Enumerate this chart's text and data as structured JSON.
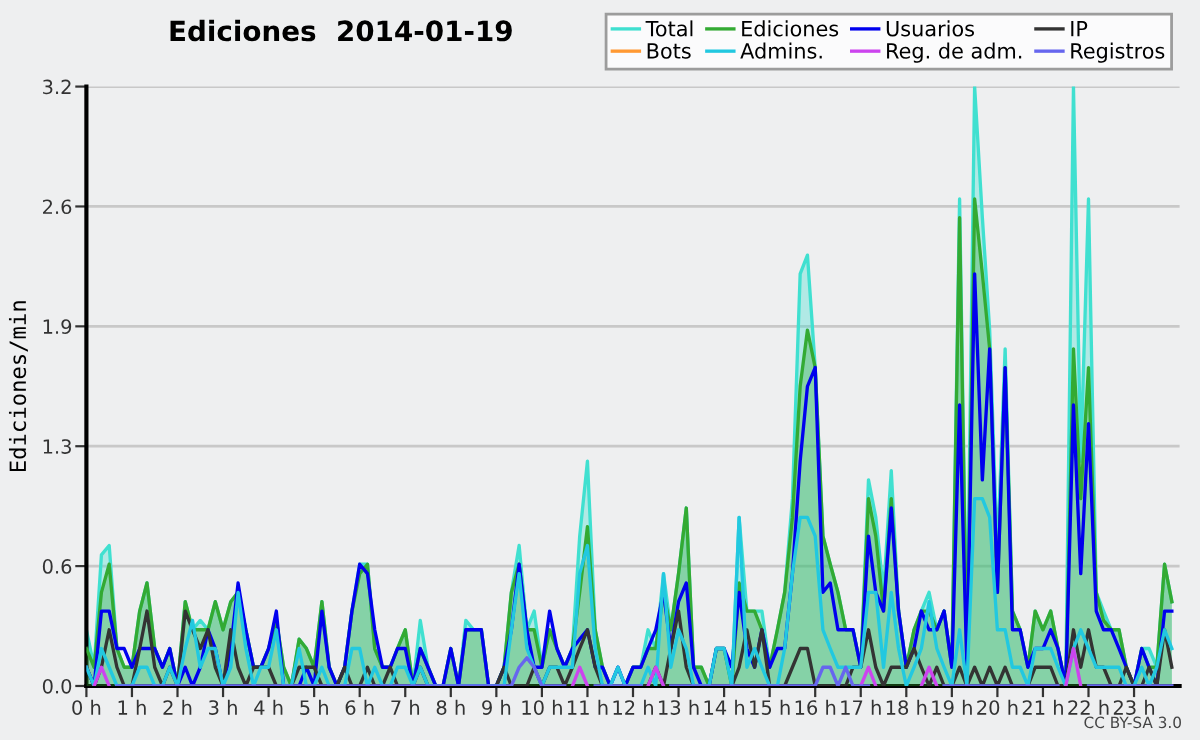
{
  "chart_data": {
    "type": "line",
    "title": "Ediciones  2014-01-19",
    "ylabel": "Ediciones/min",
    "annotations": [
      "CC BY-SA 3.0"
    ],
    "x": [
      0,
      0.17,
      0.33,
      0.5,
      0.67,
      0.83,
      1,
      1.17,
      1.33,
      1.5,
      1.67,
      1.83,
      2,
      2.17,
      2.33,
      2.5,
      2.67,
      2.83,
      3,
      3.17,
      3.33,
      3.5,
      3.67,
      3.83,
      4,
      4.17,
      4.33,
      4.5,
      4.67,
      4.83,
      5,
      5.17,
      5.33,
      5.5,
      5.67,
      5.83,
      6,
      6.17,
      6.33,
      6.5,
      6.67,
      6.83,
      7,
      7.17,
      7.33,
      7.5,
      7.67,
      7.83,
      8,
      8.17,
      8.33,
      8.5,
      8.67,
      8.83,
      9,
      9.17,
      9.33,
      9.5,
      9.67,
      9.83,
      10,
      10.17,
      10.33,
      10.5,
      10.67,
      10.83,
      11,
      11.17,
      11.33,
      11.5,
      11.67,
      11.83,
      12,
      12.17,
      12.33,
      12.5,
      12.67,
      12.83,
      13,
      13.17,
      13.33,
      13.5,
      13.67,
      13.83,
      14,
      14.17,
      14.33,
      14.5,
      14.67,
      14.83,
      15,
      15.17,
      15.33,
      15.5,
      15.67,
      15.83,
      16,
      16.17,
      16.33,
      16.5,
      16.67,
      16.83,
      17,
      17.17,
      17.33,
      17.5,
      17.67,
      17.83,
      18,
      18.17,
      18.33,
      18.5,
      18.67,
      18.83,
      19,
      19.17,
      19.33,
      19.5,
      19.67,
      19.83,
      20,
      20.17,
      20.33,
      20.5,
      20.67,
      20.83,
      21,
      21.17,
      21.33,
      21.5,
      21.67,
      21.83,
      22,
      22.17,
      22.33,
      22.5,
      22.67,
      22.83,
      23,
      23.17,
      23.33,
      23.5,
      23.67,
      23.83
    ],
    "series": [
      {
        "name": "Total",
        "type": "area",
        "color": "#40e0d0",
        "values": [
          0.3,
          0.1,
          0.7,
          0.75,
          0.2,
          0.1,
          0.1,
          0.4,
          0.55,
          0.2,
          0.1,
          0.2,
          0,
          0.45,
          0.3,
          0.35,
          0.3,
          0.45,
          0.3,
          0.45,
          0.5,
          0.3,
          0.1,
          0.1,
          0.2,
          0.35,
          0.1,
          0,
          0.25,
          0.2,
          0.1,
          0.45,
          0.1,
          0,
          0.1,
          0.4,
          0.65,
          0.65,
          0.2,
          0.1,
          0.1,
          0.2,
          0.3,
          0,
          0.35,
          0.1,
          0,
          0,
          0.2,
          0,
          0.35,
          0.3,
          0.3,
          0,
          0,
          0.1,
          0.5,
          0.75,
          0.3,
          0.4,
          0.1,
          0.3,
          0.2,
          0.1,
          0.2,
          0.8,
          1.2,
          0.3,
          0.1,
          0,
          0.1,
          0,
          0.1,
          0.1,
          0.3,
          0.2,
          0.6,
          0.3,
          0.6,
          0.95,
          0.1,
          0.1,
          0,
          0.2,
          0.2,
          0,
          0.9,
          0.4,
          0.4,
          0.4,
          0.1,
          0.3,
          0.5,
          1.0,
          2.2,
          2.3,
          1.7,
          0.8,
          0.65,
          0.5,
          0.3,
          0.3,
          0.1,
          1.1,
          0.9,
          0.5,
          1.15,
          0.4,
          0.1,
          0.3,
          0.4,
          0.5,
          0.3,
          0.4,
          0.1,
          2.6,
          0.2,
          3.2,
          2.5,
          1.9,
          0.7,
          1.8,
          0.4,
          0.3,
          0.1,
          0.4,
          0.3,
          0.4,
          0.2,
          0,
          3.2,
          1.2,
          2.6,
          0.5,
          0.4,
          0.3,
          0.3,
          0.1,
          0,
          0.2,
          0.2,
          0.1,
          0.65,
          0.45
        ]
      },
      {
        "name": "Ediciones",
        "type": "area",
        "color": "#33aa33",
        "values": [
          0.2,
          0.1,
          0.5,
          0.65,
          0.2,
          0.1,
          0.1,
          0.4,
          0.55,
          0.2,
          0.1,
          0.2,
          0,
          0.45,
          0.3,
          0.3,
          0.3,
          0.45,
          0.3,
          0.45,
          0.5,
          0.3,
          0.1,
          0.1,
          0.2,
          0.35,
          0.1,
          0,
          0.25,
          0.2,
          0.1,
          0.45,
          0.1,
          0,
          0.1,
          0.4,
          0.6,
          0.65,
          0.2,
          0.1,
          0.1,
          0.2,
          0.3,
          0,
          0.2,
          0.1,
          0,
          0,
          0.2,
          0,
          0.3,
          0.3,
          0.3,
          0,
          0,
          0.1,
          0.5,
          0.65,
          0.3,
          0.3,
          0.1,
          0.3,
          0.2,
          0.1,
          0.2,
          0.5,
          0.85,
          0.3,
          0.1,
          0,
          0,
          0,
          0.1,
          0.1,
          0.2,
          0.2,
          0.5,
          0.3,
          0.6,
          0.95,
          0.1,
          0.1,
          0,
          0.2,
          0.2,
          0,
          0.55,
          0.4,
          0.4,
          0.3,
          0.1,
          0.3,
          0.5,
          0.9,
          1.6,
          1.9,
          1.7,
          0.8,
          0.65,
          0.5,
          0.3,
          0.3,
          0.1,
          1.0,
          0.8,
          0.4,
          1.0,
          0.4,
          0.1,
          0.3,
          0.4,
          0.4,
          0.3,
          0.4,
          0.1,
          2.5,
          0.1,
          2.6,
          2.2,
          1.8,
          0.5,
          1.7,
          0.4,
          0.3,
          0.1,
          0.4,
          0.3,
          0.4,
          0.2,
          0,
          1.8,
          1.0,
          1.7,
          0.5,
          0.35,
          0.3,
          0.3,
          0.1,
          0,
          0.2,
          0.1,
          0.1,
          0.65,
          0.45
        ]
      },
      {
        "name": "Usuarios",
        "color": "#0000ee",
        "values": [
          0.1,
          0,
          0.4,
          0.4,
          0.2,
          0.2,
          0.1,
          0.2,
          0.2,
          0.2,
          0.1,
          0.2,
          0,
          0.1,
          0,
          0.1,
          0.3,
          0.2,
          0,
          0.2,
          0.55,
          0.3,
          0.1,
          0.1,
          0.2,
          0.4,
          0,
          0,
          0,
          0.1,
          0,
          0.4,
          0.1,
          0,
          0.1,
          0.4,
          0.65,
          0.6,
          0.3,
          0.1,
          0.1,
          0.2,
          0.2,
          0,
          0.2,
          0.1,
          0,
          0,
          0.2,
          0,
          0.3,
          0.3,
          0.3,
          0,
          0,
          0.1,
          0.3,
          0.65,
          0.3,
          0.1,
          0.1,
          0.4,
          0.2,
          0.1,
          0.2,
          0.25,
          0.3,
          0.1,
          0.1,
          0,
          0.1,
          0,
          0.1,
          0.1,
          0.2,
          0.3,
          0.5,
          0.2,
          0.45,
          0.55,
          0.1,
          0,
          0,
          0.2,
          0.2,
          0.1,
          0.5,
          0.2,
          0.1,
          0.3,
          0.1,
          0.2,
          0.2,
          0.6,
          1.2,
          1.6,
          1.7,
          0.5,
          0.55,
          0.3,
          0.3,
          0.3,
          0.1,
          0.8,
          0.5,
          0.4,
          0.95,
          0.4,
          0.1,
          0.2,
          0.4,
          0.3,
          0.3,
          0.4,
          0.1,
          1.5,
          0.1,
          2.2,
          1.1,
          1.8,
          0.5,
          1.7,
          0.3,
          0.3,
          0.1,
          0.2,
          0.2,
          0.3,
          0.2,
          0,
          1.5,
          0.6,
          1.4,
          0.4,
          0.3,
          0.3,
          0.2,
          0.1,
          0,
          0.2,
          0.1,
          0,
          0.4,
          0.4
        ]
      },
      {
        "name": "IP",
        "color": "#333333",
        "values": [
          0.1,
          0,
          0.1,
          0.3,
          0.1,
          0,
          0,
          0.2,
          0.4,
          0.1,
          0,
          0.1,
          0,
          0.4,
          0.3,
          0.2,
          0.3,
          0.1,
          0,
          0.3,
          0.1,
          0,
          0.1,
          0.1,
          0.1,
          0,
          0,
          0,
          0.1,
          0.1,
          0.1,
          0,
          0,
          0,
          0.1,
          0,
          0,
          0.1,
          0,
          0,
          0.1,
          0,
          0,
          0,
          0.1,
          0,
          0,
          0,
          0,
          0,
          0,
          0,
          0,
          0,
          0,
          0.1,
          0,
          0,
          0,
          0.1,
          0,
          0.1,
          0.1,
          0,
          0.1,
          0.2,
          0.3,
          0.1,
          0,
          0,
          0,
          0,
          0,
          0,
          0,
          0.1,
          0,
          0.2,
          0.4,
          0.1,
          0,
          0,
          0,
          0,
          0,
          0,
          0.1,
          0.3,
          0.1,
          0.3,
          0,
          0,
          0,
          0.1,
          0.2,
          0.2,
          0,
          0,
          0,
          0,
          0,
          0.1,
          0.1,
          0.3,
          0.1,
          0,
          0.1,
          0.1,
          0.1,
          0.2,
          0.1,
          0,
          0.1,
          0,
          0,
          0.1,
          0,
          0.1,
          0,
          0.1,
          0,
          0.1,
          0,
          0,
          0,
          0.1,
          0.1,
          0.1,
          0,
          0,
          0.3,
          0.1,
          0.3,
          0.1,
          0.1,
          0,
          0,
          0.1,
          0,
          0,
          0.1,
          0,
          0.3,
          0.1
        ]
      },
      {
        "name": "Bots",
        "color": "#ff9933",
        "values": [
          null,
          null,
          null,
          null,
          null,
          null,
          null,
          null,
          null,
          null,
          null,
          null,
          null,
          null,
          null,
          null,
          null,
          null,
          null,
          null,
          null,
          null,
          null,
          null,
          null,
          null,
          null,
          null,
          null,
          null,
          null,
          null,
          null,
          null,
          null,
          null,
          null,
          null,
          null,
          null,
          null,
          null,
          null,
          null,
          null,
          null,
          null,
          null,
          null,
          null,
          null,
          null,
          null,
          null,
          null,
          null,
          null,
          null,
          null,
          null,
          null,
          null,
          null,
          null,
          null,
          null,
          null,
          null,
          null,
          null,
          null,
          null,
          null,
          null,
          null,
          null,
          null,
          null,
          null,
          null,
          null,
          null,
          null,
          null,
          null,
          null,
          null,
          null,
          null,
          null,
          null,
          null,
          null,
          null,
          null,
          null,
          null,
          null,
          null,
          null,
          null,
          null,
          null,
          null,
          null,
          null,
          null,
          null,
          null,
          null,
          null,
          null,
          null,
          null,
          null,
          null,
          null,
          null,
          null,
          null,
          null,
          null,
          null,
          null,
          null,
          null,
          null,
          null,
          null,
          null,
          null,
          null,
          null,
          null,
          null,
          null,
          null,
          null,
          null,
          null,
          null,
          null,
          null,
          null
        ]
      },
      {
        "name": "Admins.",
        "color": "#22c8e0",
        "values": [
          0.1,
          0,
          0.2,
          0.1,
          0,
          0,
          0,
          0.1,
          0.1,
          0,
          0,
          0.1,
          0,
          0.2,
          0.35,
          0.1,
          0.2,
          0.2,
          0,
          0.1,
          0.5,
          0.2,
          0,
          0.1,
          0.1,
          0.3,
          0,
          0,
          0.2,
          0,
          0,
          0.1,
          0,
          0,
          0,
          0.2,
          0.2,
          0,
          0.1,
          0,
          0,
          0.1,
          0.1,
          0,
          0.1,
          0,
          0,
          0,
          0,
          0,
          0,
          0,
          0,
          0,
          0,
          0,
          0.3,
          0.6,
          0.2,
          0.1,
          0,
          0.1,
          0.1,
          0.1,
          0.1,
          0.6,
          0.75,
          0.2,
          0,
          0,
          0.1,
          0,
          0,
          0,
          0.1,
          0,
          0.6,
          0.1,
          0.3,
          0.2,
          0,
          0,
          0,
          0.2,
          0.2,
          0,
          0.9,
          0.1,
          0.2,
          0.1,
          0,
          0,
          0.2,
          0.6,
          0.9,
          0.9,
          0.8,
          0.3,
          0.2,
          0.1,
          0.1,
          0.1,
          0.1,
          0.5,
          0.5,
          0.1,
          0.5,
          0.2,
          0,
          0.1,
          0.2,
          0.45,
          0.2,
          0.1,
          0,
          0.3,
          0,
          1.0,
          1.0,
          0.9,
          0.3,
          0.3,
          0.1,
          0.1,
          0,
          0.2,
          0.2,
          0.2,
          0.1,
          0,
          0.2,
          0.3,
          0.2,
          0.1,
          0.1,
          0.1,
          0.1,
          0,
          0,
          0.1,
          0,
          0.1,
          0.3,
          0.2
        ]
      },
      {
        "name": "Reg. de adm.",
        "color": "#cc44ee",
        "values": [
          null,
          0,
          0.1,
          0,
          null,
          null,
          null,
          null,
          null,
          null,
          null,
          null,
          null,
          null,
          null,
          null,
          null,
          null,
          null,
          null,
          null,
          null,
          null,
          null,
          null,
          null,
          null,
          null,
          null,
          null,
          null,
          null,
          null,
          null,
          null,
          null,
          null,
          null,
          null,
          null,
          null,
          null,
          null,
          null,
          null,
          null,
          null,
          null,
          null,
          null,
          null,
          null,
          null,
          null,
          null,
          null,
          null,
          null,
          null,
          null,
          null,
          null,
          null,
          null,
          0,
          0.1,
          0,
          null,
          null,
          null,
          null,
          null,
          null,
          null,
          0,
          0.1,
          0,
          null,
          null,
          null,
          null,
          null,
          null,
          null,
          null,
          null,
          null,
          null,
          null,
          null,
          null,
          null,
          null,
          null,
          null,
          null,
          null,
          null,
          null,
          null,
          null,
          null,
          0,
          0.1,
          0,
          null,
          null,
          null,
          null,
          null,
          0,
          0.1,
          0,
          null,
          null,
          null,
          null,
          null,
          null,
          null,
          null,
          null,
          null,
          null,
          null,
          null,
          null,
          null,
          null,
          0,
          0.2,
          0,
          null,
          null,
          null,
          null,
          null,
          null,
          null,
          null,
          null,
          null,
          null,
          null
        ]
      },
      {
        "name": "Registros",
        "color": "#6666ee",
        "values": [
          null,
          null,
          null,
          null,
          0,
          0,
          0,
          0,
          0,
          0,
          0,
          0,
          0,
          0,
          0,
          0,
          0,
          0,
          0,
          0,
          0,
          0,
          0,
          0,
          0,
          0,
          0,
          0,
          0,
          0,
          0,
          0,
          0,
          0,
          0,
          0,
          0,
          0,
          0,
          0,
          0,
          0,
          0,
          0,
          0,
          0,
          0,
          0,
          0,
          0,
          0,
          0,
          0,
          0,
          0,
          0,
          0,
          0.1,
          0.15,
          0.1,
          0,
          0,
          0,
          0,
          null,
          null,
          null,
          0,
          0,
          0,
          0,
          0,
          0,
          0,
          null,
          null,
          null,
          0,
          0,
          0,
          0,
          0,
          0,
          0,
          0,
          0,
          0,
          0,
          0,
          0,
          0,
          0,
          0,
          0,
          0,
          0,
          0,
          0.1,
          0.1,
          0,
          0.1,
          0,
          0,
          0,
          null,
          null,
          null,
          null,
          null,
          null,
          null,
          null,
          null,
          0,
          0,
          0,
          0,
          0,
          0,
          0,
          0,
          0,
          0,
          0,
          0,
          0,
          0,
          0,
          0,
          null,
          null,
          null,
          0,
          0,
          0,
          0,
          0,
          0,
          0,
          0,
          0,
          0,
          0,
          0
        ]
      }
    ],
    "xlim": [
      0,
      24
    ],
    "xticks": [
      {
        "value": 0,
        "label": "0 h"
      },
      {
        "value": 1,
        "label": "1 h"
      },
      {
        "value": 2,
        "label": "2 h"
      },
      {
        "value": 3,
        "label": "3 h"
      },
      {
        "value": 4,
        "label": "4 h"
      },
      {
        "value": 5,
        "label": "5 h"
      },
      {
        "value": 6,
        "label": "6 h"
      },
      {
        "value": 7,
        "label": "7 h"
      },
      {
        "value": 8,
        "label": "8 h"
      },
      {
        "value": 9,
        "label": "9 h"
      },
      {
        "value": 10,
        "label": "10 h"
      },
      {
        "value": 11,
        "label": "11 h"
      },
      {
        "value": 12,
        "label": "12 h"
      },
      {
        "value": 13,
        "label": "13 h"
      },
      {
        "value": 14,
        "label": "14 h"
      },
      {
        "value": 15,
        "label": "15 h"
      },
      {
        "value": 16,
        "label": "16 h"
      },
      {
        "value": 17,
        "label": "17 h"
      },
      {
        "value": 18,
        "label": "18 h"
      },
      {
        "value": 19,
        "label": "19 h"
      },
      {
        "value": 20,
        "label": "20 h"
      },
      {
        "value": 21,
        "label": "21 h"
      },
      {
        "value": 22,
        "label": "22 h"
      },
      {
        "value": 23,
        "label": "23 h"
      }
    ],
    "ylim": [
      0,
      3.2
    ],
    "yticks": [
      {
        "value": 0,
        "label": "0.0"
      },
      {
        "value": 0.64,
        "label": "0.6"
      },
      {
        "value": 1.28,
        "label": "1.3"
      },
      {
        "value": 1.92,
        "label": "1.9"
      },
      {
        "value": 2.56,
        "label": "2.6"
      },
      3.2
    ],
    "grid": "y",
    "legend": "top right",
    "marker": "none",
    "line_style": "solid"
  }
}
